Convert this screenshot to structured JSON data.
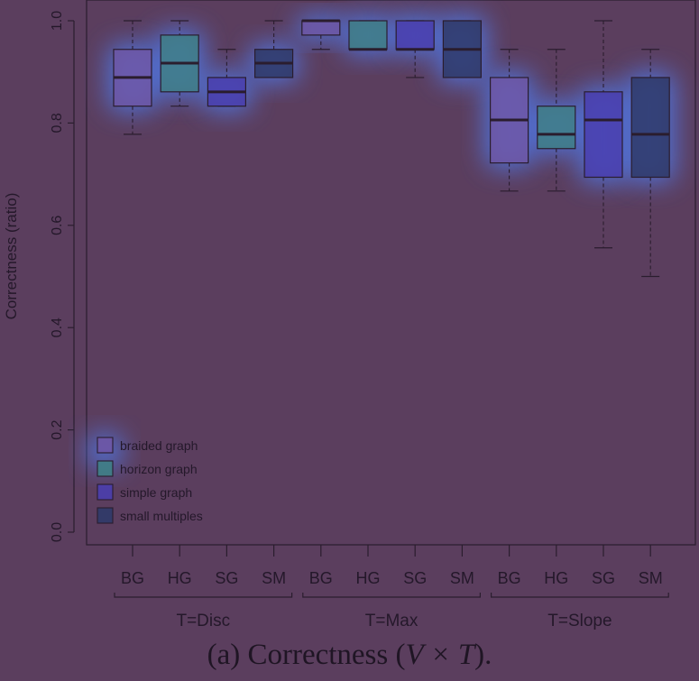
{
  "chart_data": {
    "type": "boxplot",
    "ylabel": "Correctness (ratio)",
    "ylim": [
      0.0,
      1.0
    ],
    "yticks": [
      "0.0",
      "0.2",
      "0.4",
      "0.6",
      "0.8",
      "1.0"
    ],
    "legend": {
      "placement": "bottom-left",
      "entries": [
        "braided graph",
        "horizon graph",
        "simple graph",
        "small multiples"
      ]
    },
    "series_colors": [
      "#6e57a6",
      "#3f7f86",
      "#4a3eae",
      "#2f3a69"
    ],
    "groups": [
      {
        "label": "T=Disc",
        "boxes": [
          {
            "label": "BG",
            "min": 0.778,
            "q1": 0.833,
            "median": 0.889,
            "q3": 0.944,
            "max": 1.0
          },
          {
            "label": "HG",
            "min": 0.833,
            "q1": 0.861,
            "median": 0.917,
            "q3": 0.972,
            "max": 1.0
          },
          {
            "label": "SG",
            "min": 0.833,
            "q1": 0.833,
            "median": 0.861,
            "q3": 0.889,
            "max": 0.944
          },
          {
            "label": "SM",
            "min": 0.889,
            "q1": 0.889,
            "median": 0.917,
            "q3": 0.944,
            "max": 1.0
          }
        ]
      },
      {
        "label": "T=Max",
        "boxes": [
          {
            "label": "BG",
            "min": 0.944,
            "q1": 0.972,
            "median": 1.0,
            "q3": 1.0,
            "max": 1.0
          },
          {
            "label": "HG",
            "min": 0.944,
            "q1": 0.944,
            "median": 0.944,
            "q3": 1.0,
            "max": 1.0
          },
          {
            "label": "SG",
            "min": 0.889,
            "q1": 0.944,
            "median": 0.944,
            "q3": 1.0,
            "max": 1.0
          },
          {
            "label": "SM",
            "min": 0.889,
            "q1": 0.889,
            "median": 0.944,
            "q3": 1.0,
            "max": 1.0
          }
        ]
      },
      {
        "label": "T=Slope",
        "boxes": [
          {
            "label": "BG",
            "min": 0.667,
            "q1": 0.722,
            "median": 0.806,
            "q3": 0.889,
            "max": 0.944
          },
          {
            "label": "HG",
            "min": 0.667,
            "q1": 0.75,
            "median": 0.778,
            "q3": 0.833,
            "max": 0.944
          },
          {
            "label": "SG",
            "min": 0.556,
            "q1": 0.694,
            "median": 0.806,
            "q3": 0.861,
            "max": 1.0
          },
          {
            "label": "SM",
            "min": 0.5,
            "q1": 0.694,
            "median": 0.778,
            "q3": 0.889,
            "max": 0.944
          }
        ]
      }
    ]
  },
  "caption": {
    "prefix": "(a)  Correctness (",
    "math": "V × T",
    "suffix": ")."
  }
}
